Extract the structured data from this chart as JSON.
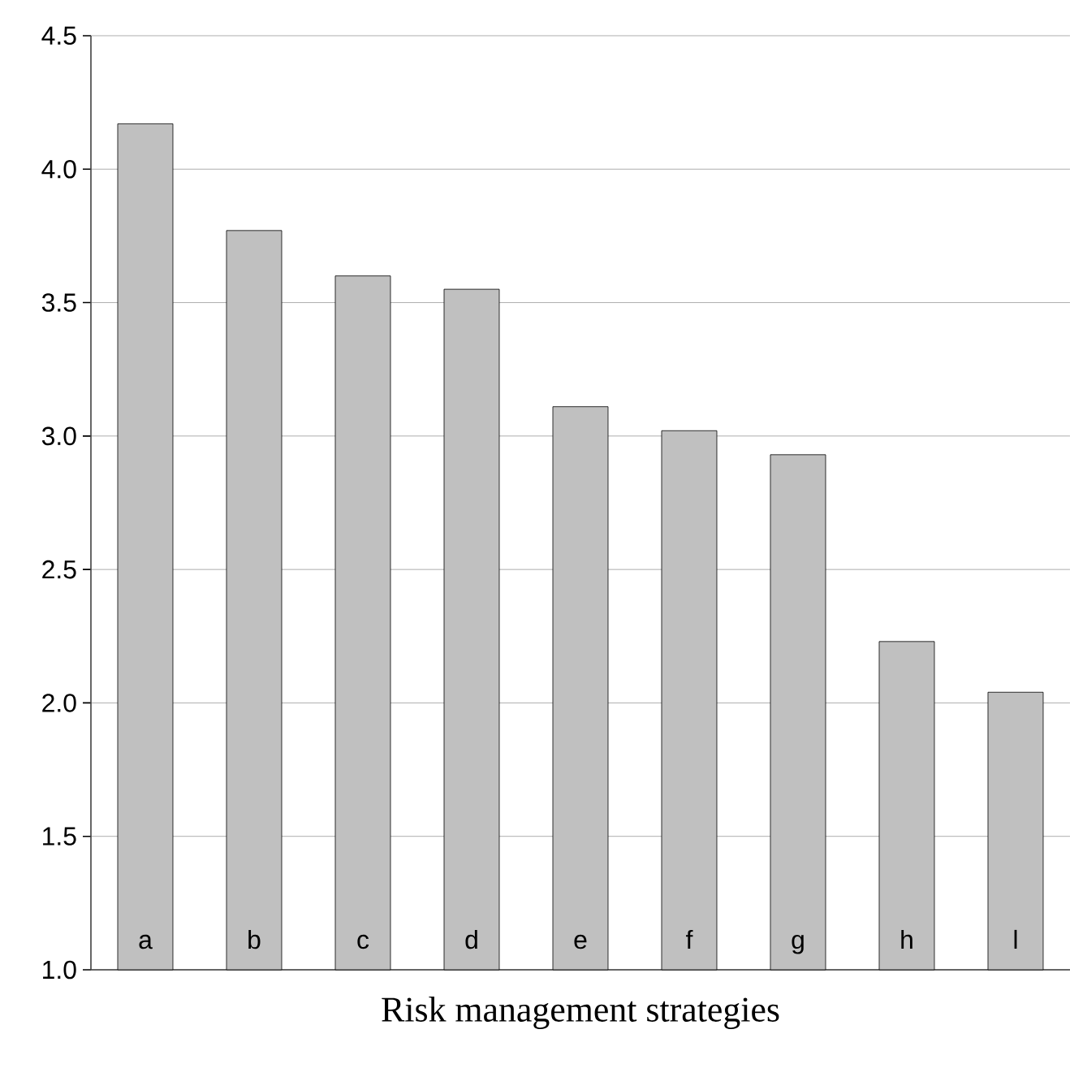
{
  "chart_data": {
    "type": "bar",
    "xlabel": "Risk management strategies",
    "categories": [
      "a",
      "b",
      "c",
      "d",
      "e",
      "f",
      "g",
      "h",
      "l"
    ],
    "values": [
      4.17,
      3.77,
      3.6,
      3.55,
      3.11,
      3.02,
      2.93,
      2.23,
      2.04
    ],
    "color": "#c0c0c0",
    "ylim": [
      1.0,
      4.5
    ],
    "yticks": [
      {
        "value": 1.0,
        "label": "1.0"
      },
      {
        "value": 1.5,
        "label": "1.5"
      },
      {
        "value": 2.0,
        "label": "2.0"
      },
      {
        "value": 2.5,
        "label": "2.5"
      },
      {
        "value": 3.0,
        "label": "3.0"
      },
      {
        "value": 3.5,
        "label": "3.5"
      },
      {
        "value": 4.0,
        "label": "4.0"
      },
      {
        "value": 4.5,
        "label": "4.5"
      }
    ],
    "grid": "y"
  }
}
